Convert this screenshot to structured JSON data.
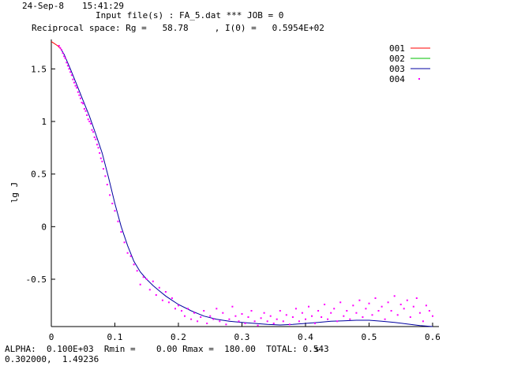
{
  "header": {
    "date": "24-Sep-8",
    "time": "15:41:29",
    "input_line": "Input file(s) : FA_5.dat *** JOB = 0",
    "recip_line": "Reciprocal space: Rg =   58.78     , I(0) =   0.5954E+02"
  },
  "footer": {
    "params_line": "ALPHA:  0.100E+03  Rmin =    0.00 Rmax =  180.00  TOTAL: 0.543",
    "coord_line": "0.302000,  1.49236"
  },
  "colors": {
    "s001": "#ff0000",
    "s002": "#00c000",
    "s003": "#0000a0",
    "s004": "#ff00ff",
    "axis": "#000000"
  },
  "chart_data": {
    "type": "line",
    "title": "",
    "xlabel": "s",
    "ylabel": "lg J",
    "xlim": [
      0,
      0.61
    ],
    "ylim": [
      -0.95,
      1.78
    ],
    "x_ticks": [
      0,
      0.1,
      0.2,
      0.3,
      0.4,
      0.5,
      0.6
    ],
    "x_tick_labels": [
      "0",
      "0.1",
      "0.2",
      "0.3",
      "0.4",
      "0.5",
      "0.6"
    ],
    "y_ticks": [
      1.5,
      1,
      0.5,
      0,
      -0.5
    ],
    "y_tick_labels": [
      "1.5",
      "1",
      "0.5",
      "0",
      "-0.5"
    ],
    "grid": false,
    "legend_position": "top-right",
    "series": [
      {
        "name": "001",
        "style": "line",
        "color": "#ff0000",
        "x": [
          0.0,
          0.005,
          0.01,
          0.015
        ],
        "y": [
          1.76,
          1.74,
          1.72,
          1.69
        ]
      },
      {
        "name": "002",
        "style": "line",
        "color": "#00c000",
        "x": [],
        "y": []
      },
      {
        "name": "003",
        "style": "line",
        "color": "#0000a0",
        "x": [
          0.015,
          0.02,
          0.03,
          0.04,
          0.05,
          0.06,
          0.07,
          0.08,
          0.09,
          0.1,
          0.11,
          0.12,
          0.13,
          0.14,
          0.15,
          0.16,
          0.17,
          0.18,
          0.19,
          0.2,
          0.22,
          0.24,
          0.26,
          0.28,
          0.3,
          0.32,
          0.34,
          0.36,
          0.38,
          0.4,
          0.42,
          0.44,
          0.46,
          0.48,
          0.5,
          0.52,
          0.54,
          0.56,
          0.58,
          0.6
        ],
        "y": [
          1.69,
          1.64,
          1.5,
          1.35,
          1.2,
          1.05,
          0.88,
          0.7,
          0.47,
          0.22,
          0.0,
          -0.18,
          -0.33,
          -0.43,
          -0.5,
          -0.56,
          -0.61,
          -0.66,
          -0.7,
          -0.74,
          -0.8,
          -0.85,
          -0.88,
          -0.9,
          -0.91,
          -0.92,
          -0.93,
          -0.935,
          -0.93,
          -0.92,
          -0.91,
          -0.9,
          -0.895,
          -0.89,
          -0.89,
          -0.9,
          -0.91,
          -0.925,
          -0.94,
          -0.95
        ]
      },
      {
        "name": "004",
        "style": "points",
        "color": "#ff00ff",
        "x": [
          0.012,
          0.014,
          0.016,
          0.018,
          0.02,
          0.022,
          0.024,
          0.026,
          0.028,
          0.03,
          0.032,
          0.034,
          0.036,
          0.038,
          0.04,
          0.042,
          0.044,
          0.046,
          0.048,
          0.05,
          0.052,
          0.054,
          0.056,
          0.058,
          0.06,
          0.062,
          0.064,
          0.066,
          0.068,
          0.07,
          0.072,
          0.074,
          0.076,
          0.078,
          0.08,
          0.082,
          0.085,
          0.088,
          0.092,
          0.096,
          0.1,
          0.105,
          0.11,
          0.115,
          0.12,
          0.125,
          0.13,
          0.135,
          0.14,
          0.145,
          0.15,
          0.155,
          0.16,
          0.165,
          0.17,
          0.175,
          0.18,
          0.185,
          0.19,
          0.195,
          0.2,
          0.205,
          0.21,
          0.215,
          0.22,
          0.225,
          0.23,
          0.235,
          0.24,
          0.245,
          0.25,
          0.255,
          0.26,
          0.265,
          0.27,
          0.275,
          0.28,
          0.285,
          0.29,
          0.295,
          0.3,
          0.305,
          0.31,
          0.315,
          0.32,
          0.325,
          0.33,
          0.335,
          0.34,
          0.345,
          0.35,
          0.355,
          0.36,
          0.365,
          0.37,
          0.375,
          0.38,
          0.385,
          0.39,
          0.395,
          0.4,
          0.405,
          0.41,
          0.415,
          0.42,
          0.425,
          0.43,
          0.435,
          0.44,
          0.445,
          0.45,
          0.455,
          0.46,
          0.465,
          0.47,
          0.475,
          0.48,
          0.485,
          0.49,
          0.495,
          0.5,
          0.505,
          0.51,
          0.515,
          0.52,
          0.525,
          0.53,
          0.535,
          0.54,
          0.545,
          0.55,
          0.555,
          0.56,
          0.565,
          0.57,
          0.575,
          0.58,
          0.585,
          0.59,
          0.595,
          0.6
        ],
        "y": [
          1.72,
          1.7,
          1.68,
          1.65,
          1.62,
          1.6,
          1.56,
          1.53,
          1.5,
          1.47,
          1.44,
          1.4,
          1.37,
          1.34,
          1.32,
          1.28,
          1.25,
          1.22,
          1.18,
          1.17,
          1.12,
          1.1,
          1.06,
          1.02,
          1.0,
          0.98,
          0.92,
          0.9,
          0.85,
          0.83,
          0.78,
          0.75,
          0.7,
          0.65,
          0.62,
          0.55,
          0.48,
          0.4,
          0.3,
          0.22,
          0.15,
          0.05,
          -0.05,
          -0.15,
          -0.25,
          -0.28,
          -0.36,
          -0.42,
          -0.55,
          -0.48,
          -0.5,
          -0.6,
          -0.52,
          -0.65,
          -0.58,
          -0.7,
          -0.62,
          -0.72,
          -0.68,
          -0.78,
          -0.75,
          -0.8,
          -0.85,
          -0.78,
          -0.88,
          -0.82,
          -0.9,
          -0.86,
          -0.8,
          -0.92,
          -0.85,
          -0.88,
          -0.78,
          -0.9,
          -0.82,
          -0.93,
          -0.88,
          -0.76,
          -0.85,
          -0.9,
          -0.83,
          -0.92,
          -0.86,
          -0.8,
          -0.9,
          -0.94,
          -0.87,
          -0.82,
          -0.9,
          -0.85,
          -0.92,
          -0.88,
          -0.8,
          -0.9,
          -0.84,
          -0.93,
          -0.86,
          -0.78,
          -0.9,
          -0.82,
          -0.88,
          -0.76,
          -0.85,
          -0.92,
          -0.8,
          -0.86,
          -0.74,
          -0.88,
          -0.82,
          -0.78,
          -0.9,
          -0.72,
          -0.85,
          -0.8,
          -0.88,
          -0.75,
          -0.82,
          -0.7,
          -0.86,
          -0.78,
          -0.73,
          -0.84,
          -0.68,
          -0.8,
          -0.76,
          -0.88,
          -0.72,
          -0.8,
          -0.66,
          -0.84,
          -0.74,
          -0.78,
          -0.7,
          -0.86,
          -0.76,
          -0.68,
          -0.82,
          -0.9,
          -0.75,
          -0.8,
          -0.85
        ]
      }
    ]
  }
}
